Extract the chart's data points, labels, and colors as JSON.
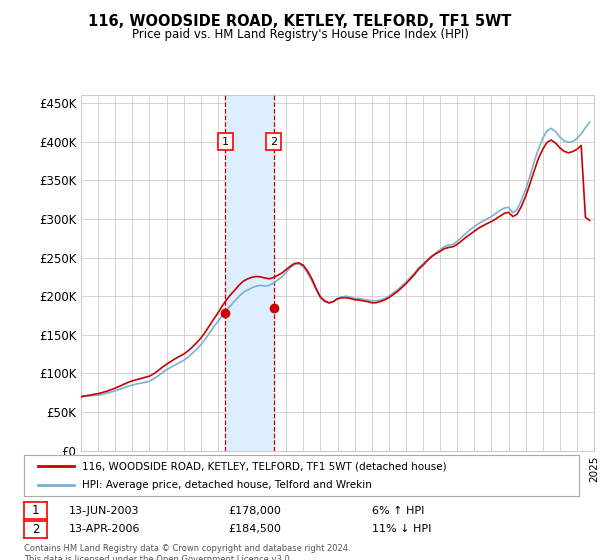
{
  "title": "116, WOODSIDE ROAD, KETLEY, TELFORD, TF1 5WT",
  "subtitle": "Price paid vs. HM Land Registry's House Price Index (HPI)",
  "ylabel_ticks": [
    "£0",
    "£50K",
    "£100K",
    "£150K",
    "£200K",
    "£250K",
    "£300K",
    "£350K",
    "£400K",
    "£450K"
  ],
  "ytick_values": [
    0,
    50000,
    100000,
    150000,
    200000,
    250000,
    300000,
    350000,
    400000,
    450000
  ],
  "ylim": [
    0,
    460000
  ],
  "x_start_year": 1995,
  "x_end_year": 2025,
  "sale1_year": 2003.45,
  "sale1_price": 178000,
  "sale1_label": "1",
  "sale1_date": "13-JUN-2003",
  "sale1_hpi": "6% ↑ HPI",
  "sale2_year": 2006.28,
  "sale2_price": 184500,
  "sale2_label": "2",
  "sale2_date": "13-APR-2006",
  "sale2_hpi": "11% ↓ HPI",
  "line1_color": "#cc0000",
  "line2_color": "#7ab0d4",
  "shade_color": "#ddeeff",
  "grid_color": "#cccccc",
  "background_color": "#ffffff",
  "legend1_label": "116, WOODSIDE ROAD, KETLEY, TELFORD, TF1 5WT (detached house)",
  "legend2_label": "HPI: Average price, detached house, Telford and Wrekin",
  "footer": "Contains HM Land Registry data © Crown copyright and database right 2024.\nThis data is licensed under the Open Government Licence v3.0.",
  "hpi_data": {
    "years": [
      1995.0,
      1995.25,
      1995.5,
      1995.75,
      1996.0,
      1996.25,
      1996.5,
      1996.75,
      1997.0,
      1997.25,
      1997.5,
      1997.75,
      1998.0,
      1998.25,
      1998.5,
      1998.75,
      1999.0,
      1999.25,
      1999.5,
      1999.75,
      2000.0,
      2000.25,
      2000.5,
      2000.75,
      2001.0,
      2001.25,
      2001.5,
      2001.75,
      2002.0,
      2002.25,
      2002.5,
      2002.75,
      2003.0,
      2003.25,
      2003.5,
      2003.75,
      2004.0,
      2004.25,
      2004.5,
      2004.75,
      2005.0,
      2005.25,
      2005.5,
      2005.75,
      2006.0,
      2006.25,
      2006.5,
      2006.75,
      2007.0,
      2007.25,
      2007.5,
      2007.75,
      2008.0,
      2008.25,
      2008.5,
      2008.75,
      2009.0,
      2009.25,
      2009.5,
      2009.75,
      2010.0,
      2010.25,
      2010.5,
      2010.75,
      2011.0,
      2011.25,
      2011.5,
      2011.75,
      2012.0,
      2012.25,
      2012.5,
      2012.75,
      2013.0,
      2013.25,
      2013.5,
      2013.75,
      2014.0,
      2014.25,
      2014.5,
      2014.75,
      2015.0,
      2015.25,
      2015.5,
      2015.75,
      2016.0,
      2016.25,
      2016.5,
      2016.75,
      2017.0,
      2017.25,
      2017.5,
      2017.75,
      2018.0,
      2018.25,
      2018.5,
      2018.75,
      2019.0,
      2019.25,
      2019.5,
      2019.75,
      2020.0,
      2020.25,
      2020.5,
      2020.75,
      2021.0,
      2021.25,
      2021.5,
      2021.75,
      2022.0,
      2022.25,
      2022.5,
      2022.75,
      2023.0,
      2023.25,
      2023.5,
      2023.75,
      2024.0,
      2024.25,
      2024.5,
      2024.75
    ],
    "values": [
      70000,
      70500,
      71000,
      71500,
      72000,
      73000,
      74500,
      76000,
      77500,
      79500,
      81500,
      83500,
      85000,
      86500,
      87500,
      88500,
      90000,
      93000,
      97000,
      101000,
      105000,
      108000,
      111000,
      114000,
      117000,
      121000,
      126000,
      131000,
      137000,
      144000,
      152000,
      160000,
      167000,
      175000,
      182000,
      188000,
      194000,
      200000,
      205000,
      208000,
      211000,
      213000,
      214000,
      213000,
      214000,
      217000,
      221000,
      225000,
      231000,
      237000,
      241000,
      242000,
      238000,
      230000,
      220000,
      208000,
      198000,
      193000,
      191000,
      193000,
      197000,
      199000,
      200000,
      199000,
      197000,
      197000,
      196000,
      195000,
      194000,
      194000,
      195000,
      197000,
      200000,
      204000,
      208000,
      213000,
      218000,
      224000,
      230000,
      237000,
      242000,
      247000,
      252000,
      256000,
      260000,
      264000,
      266000,
      267000,
      271000,
      276000,
      281000,
      286000,
      290000,
      294000,
      297000,
      300000,
      303000,
      307000,
      311000,
      314000,
      315000,
      308000,
      312000,
      324000,
      338000,
      355000,
      374000,
      390000,
      404000,
      414000,
      417000,
      413000,
      406000,
      401000,
      399000,
      400000,
      404000,
      410000,
      418000,
      425000
    ]
  },
  "price_data": {
    "years": [
      1995.0,
      1995.25,
      1995.5,
      1995.75,
      1996.0,
      1996.25,
      1996.5,
      1996.75,
      1997.0,
      1997.25,
      1997.5,
      1997.75,
      1998.0,
      1998.25,
      1998.5,
      1998.75,
      1999.0,
      1999.25,
      1999.5,
      1999.75,
      2000.0,
      2000.25,
      2000.5,
      2000.75,
      2001.0,
      2001.25,
      2001.5,
      2001.75,
      2002.0,
      2002.25,
      2002.5,
      2002.75,
      2003.0,
      2003.25,
      2003.5,
      2003.75,
      2004.0,
      2004.25,
      2004.5,
      2004.75,
      2005.0,
      2005.25,
      2005.5,
      2005.75,
      2006.0,
      2006.25,
      2006.5,
      2006.75,
      2007.0,
      2007.25,
      2007.5,
      2007.75,
      2008.0,
      2008.25,
      2008.5,
      2008.75,
      2009.0,
      2009.25,
      2009.5,
      2009.75,
      2010.0,
      2010.25,
      2010.5,
      2010.75,
      2011.0,
      2011.25,
      2011.5,
      2011.75,
      2012.0,
      2012.25,
      2012.5,
      2012.75,
      2013.0,
      2013.25,
      2013.5,
      2013.75,
      2014.0,
      2014.25,
      2014.5,
      2014.75,
      2015.0,
      2015.25,
      2015.5,
      2015.75,
      2016.0,
      2016.25,
      2016.5,
      2016.75,
      2017.0,
      2017.25,
      2017.5,
      2017.75,
      2018.0,
      2018.25,
      2018.5,
      2018.75,
      2019.0,
      2019.25,
      2019.5,
      2019.75,
      2020.0,
      2020.25,
      2020.5,
      2020.75,
      2021.0,
      2021.25,
      2021.5,
      2021.75,
      2022.0,
      2022.25,
      2022.5,
      2022.75,
      2023.0,
      2023.25,
      2023.5,
      2023.75,
      2024.0,
      2024.25,
      2024.5,
      2024.75
    ],
    "values": [
      70000,
      71000,
      72000,
      73000,
      74000,
      75500,
      77000,
      79000,
      81000,
      83500,
      86000,
      88500,
      90500,
      92000,
      93500,
      95000,
      96500,
      99500,
      103500,
      108000,
      112000,
      115500,
      119000,
      122000,
      125000,
      129000,
      134000,
      139500,
      145500,
      153000,
      161500,
      170000,
      178000,
      187000,
      195000,
      202000,
      208000,
      214500,
      219500,
      222500,
      224500,
      225500,
      225000,
      223500,
      222500,
      224000,
      227000,
      230000,
      234500,
      239000,
      242500,
      243000,
      240000,
      232500,
      222500,
      210000,
      199000,
      194000,
      191500,
      193000,
      196500,
      198000,
      198000,
      197000,
      195500,
      195000,
      194000,
      193000,
      191500,
      191500,
      193000,
      195000,
      198000,
      202000,
      206000,
      211000,
      216000,
      222000,
      228000,
      235000,
      240000,
      246000,
      251000,
      255000,
      258000,
      261500,
      263000,
      264000,
      267000,
      271500,
      276000,
      280000,
      284000,
      288000,
      291000,
      294000,
      296500,
      300000,
      303500,
      307000,
      308500,
      303000,
      306000,
      316000,
      329000,
      345000,
      362000,
      378000,
      390000,
      399000,
      402000,
      398000,
      392000,
      387500,
      385500,
      387000,
      390000,
      395000,
      302000,
      298000
    ]
  }
}
